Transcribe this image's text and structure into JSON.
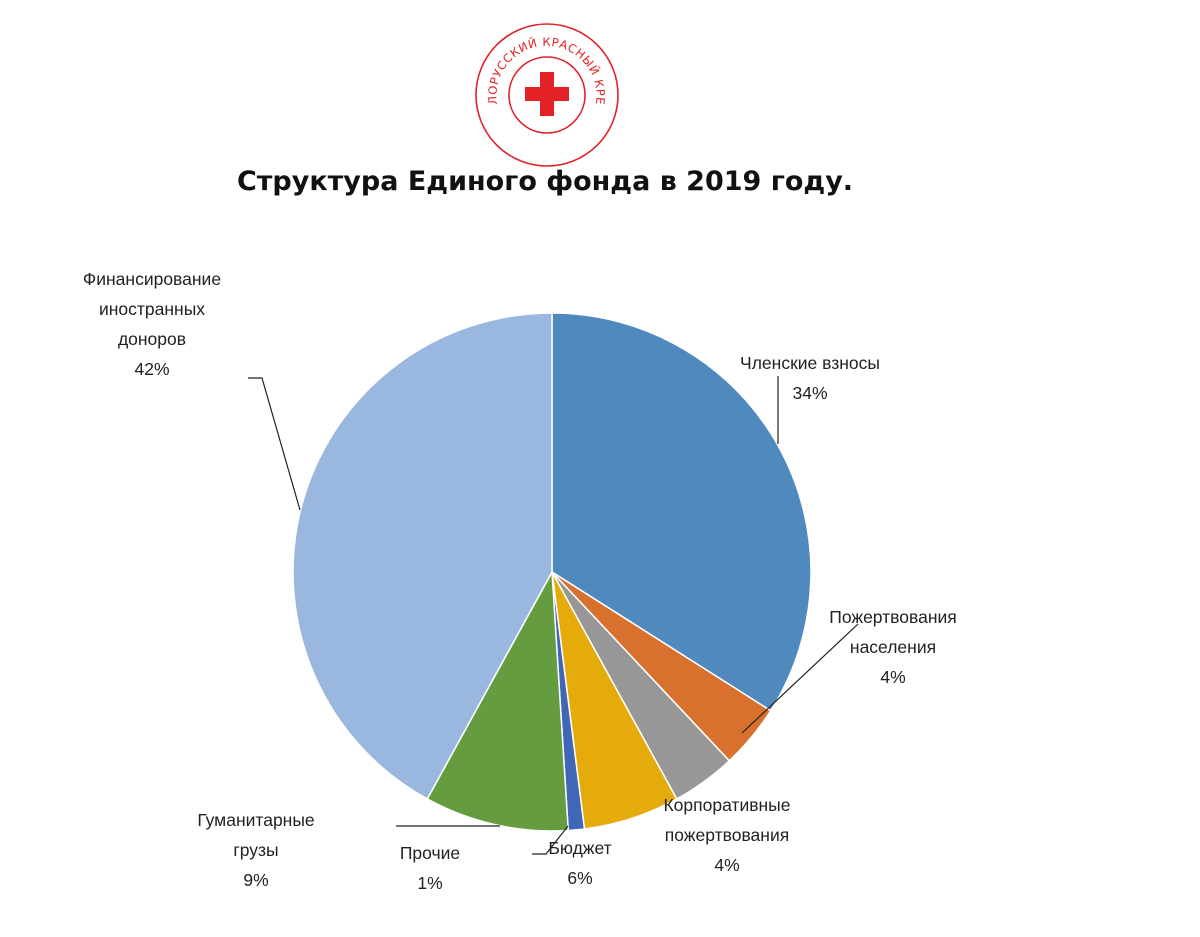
{
  "logo": {
    "ring_text": "БЕЛОРУССКИЙ КРАСНЫЙ КРЕСТ",
    "brand_red": "#e32127"
  },
  "chart_data": {
    "type": "pie",
    "title": "Структура Единого фонда в 2019 году.",
    "start_angle_deg": 0,
    "direction": "clockwise",
    "slices": [
      {
        "name": "Членские взносы",
        "lines": [
          "Членские взносы"
        ],
        "value": 34,
        "label": "34%",
        "color": "#4f89bd"
      },
      {
        "name": "Пожертвования населения",
        "lines": [
          "Пожертвования",
          "населения"
        ],
        "value": 4,
        "label": "4%",
        "color": "#d8702e"
      },
      {
        "name": "Корпоративные пожертвования",
        "lines": [
          "Корпоративные",
          "пожертвования"
        ],
        "value": 4,
        "label": "4%",
        "color": "#979797"
      },
      {
        "name": "Бюджет",
        "lines": [
          "Бюджет"
        ],
        "value": 6,
        "label": "6%",
        "color": "#e5ab0b"
      },
      {
        "name": "Прочие",
        "lines": [
          "Прочие"
        ],
        "value": 1,
        "label": "1%",
        "color": "#3f67b5"
      },
      {
        "name": "Гуманитарные грузы",
        "lines": [
          "Гуманитарные",
          "грузы"
        ],
        "value": 9,
        "label": "9%",
        "color": "#659c40"
      },
      {
        "name": "Финансирование иностранных доноров",
        "lines": [
          "Финансирование",
          "иностранных",
          "доноров"
        ],
        "value": 42,
        "label": "42%",
        "color": "#9ab8df"
      }
    ]
  }
}
